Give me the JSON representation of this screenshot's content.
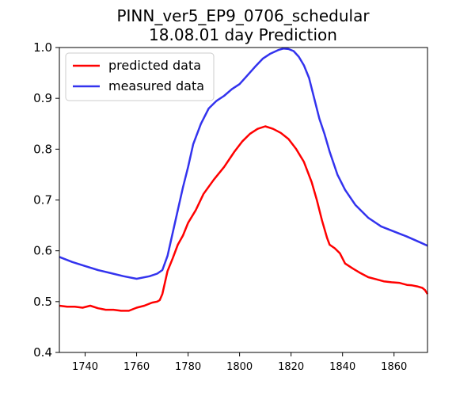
{
  "chart_data": {
    "type": "line",
    "title": [
      "PINN_ver5_EP9_0706_schedular",
      "18.08.01 day Prediction"
    ],
    "xlabel": "",
    "ylabel": "",
    "xlim": [
      1730,
      1873
    ],
    "ylim": [
      0.4,
      1.0
    ],
    "xticks": [
      1740,
      1760,
      1780,
      1800,
      1820,
      1840,
      1860
    ],
    "yticks": [
      0.4,
      0.5,
      0.6,
      0.7,
      0.8,
      0.9,
      1.0
    ],
    "xtick_labels": [
      "1740",
      "1760",
      "1780",
      "1800",
      "1820",
      "1840",
      "1860"
    ],
    "ytick_labels": [
      "0.4",
      "0.5",
      "0.6",
      "0.7",
      "0.8",
      "0.9",
      "1.0"
    ],
    "grid": false,
    "legend_position": "top-left",
    "series": [
      {
        "name": "predicted data",
        "color": "#ff0000",
        "x": [
          1730,
          1733,
          1736,
          1739,
          1742,
          1745,
          1748,
          1751,
          1754,
          1757,
          1760,
          1763,
          1766,
          1768,
          1769,
          1770,
          1772,
          1774,
          1776,
          1778,
          1780,
          1783,
          1786,
          1790,
          1794,
          1798,
          1801,
          1804,
          1807,
          1810,
          1813,
          1816,
          1819,
          1822,
          1825,
          1828,
          1830,
          1832,
          1834,
          1835,
          1837,
          1839,
          1841,
          1844,
          1847,
          1850,
          1853,
          1856,
          1859,
          1862,
          1865,
          1867,
          1869,
          1871,
          1872,
          1873
        ],
        "y": [
          0.492,
          0.49,
          0.49,
          0.488,
          0.492,
          0.487,
          0.484,
          0.484,
          0.482,
          0.482,
          0.488,
          0.492,
          0.498,
          0.5,
          0.503,
          0.515,
          0.56,
          0.585,
          0.612,
          0.63,
          0.655,
          0.68,
          0.712,
          0.74,
          0.765,
          0.795,
          0.815,
          0.83,
          0.84,
          0.845,
          0.84,
          0.832,
          0.82,
          0.8,
          0.775,
          0.735,
          0.7,
          0.66,
          0.625,
          0.612,
          0.605,
          0.595,
          0.575,
          0.565,
          0.556,
          0.548,
          0.544,
          0.54,
          0.538,
          0.537,
          0.533,
          0.532,
          0.53,
          0.527,
          0.523,
          0.515
        ]
      },
      {
        "name": "measured data",
        "color": "#3333ee",
        "x": [
          1730,
          1735,
          1740,
          1745,
          1750,
          1755,
          1760,
          1765,
          1768,
          1770,
          1772,
          1774,
          1776,
          1778,
          1780,
          1782,
          1785,
          1788,
          1791,
          1794,
          1797,
          1800,
          1803,
          1806,
          1809,
          1812,
          1815,
          1817,
          1819,
          1821,
          1823,
          1825,
          1827,
          1829,
          1831,
          1833,
          1835,
          1838,
          1841,
          1845,
          1850,
          1855,
          1860,
          1865,
          1870,
          1873
        ],
        "y": [
          0.588,
          0.578,
          0.57,
          0.562,
          0.556,
          0.55,
          0.545,
          0.55,
          0.555,
          0.562,
          0.59,
          0.635,
          0.68,
          0.725,
          0.765,
          0.81,
          0.85,
          0.88,
          0.895,
          0.905,
          0.918,
          0.928,
          0.945,
          0.962,
          0.978,
          0.988,
          0.995,
          0.998,
          0.997,
          0.993,
          0.982,
          0.965,
          0.94,
          0.9,
          0.86,
          0.83,
          0.795,
          0.75,
          0.72,
          0.69,
          0.665,
          0.648,
          0.638,
          0.628,
          0.617,
          0.61
        ]
      }
    ]
  }
}
